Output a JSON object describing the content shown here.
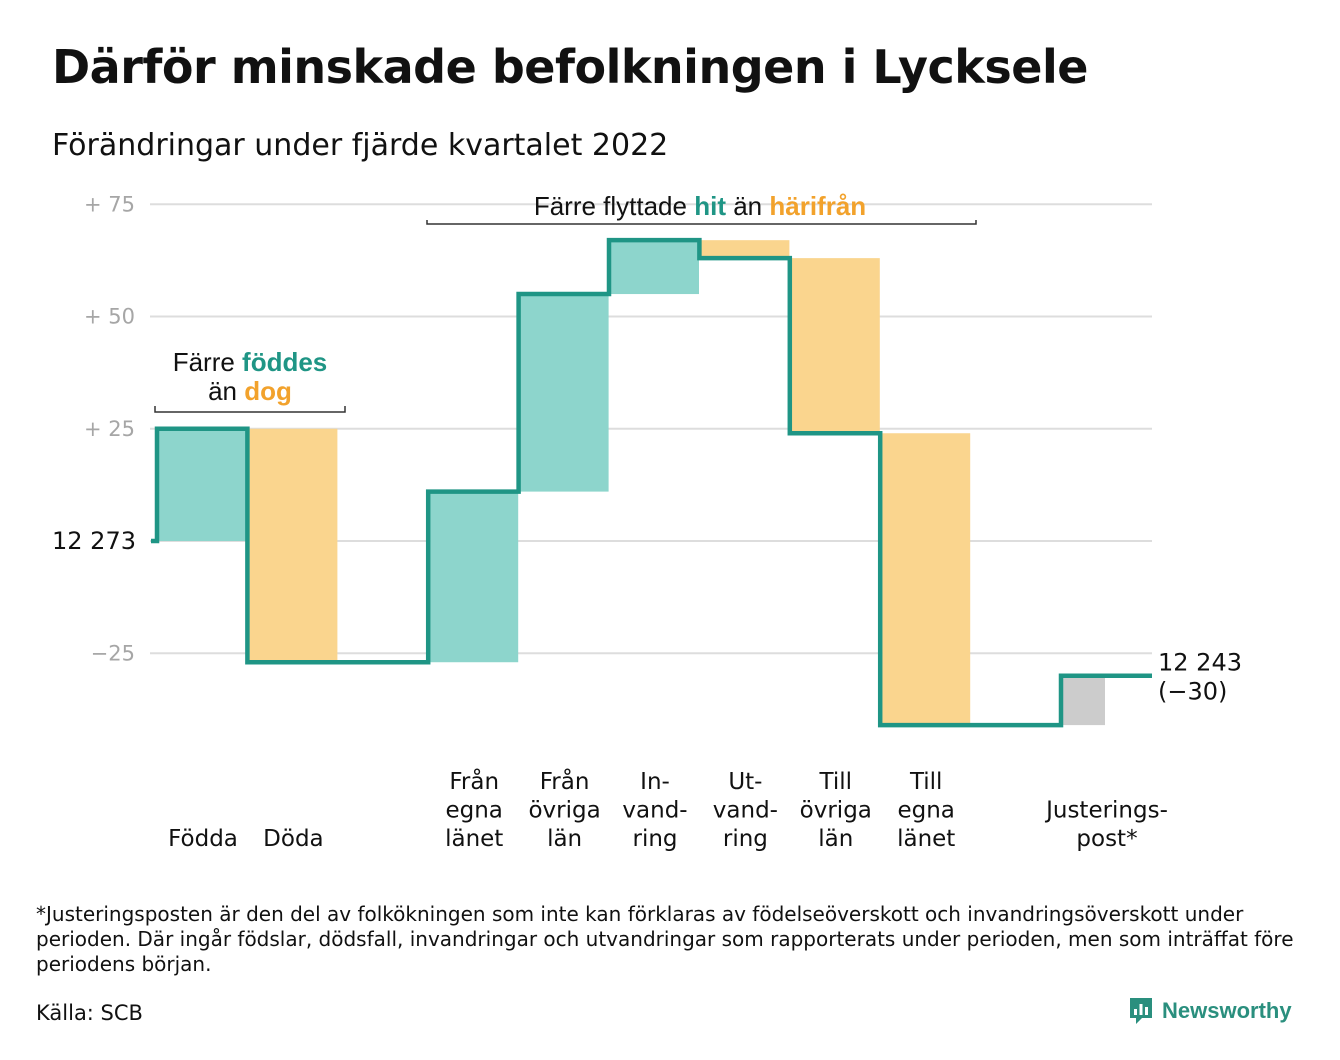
{
  "title": "Därför minskade befolkningen i Lycksele",
  "subtitle": "Förändringar under fjärde kvartalet 2022",
  "chart_data": {
    "type": "waterfall",
    "start_value": 12273,
    "start_label": "12 273",
    "end_value": 12243,
    "end_label": "12 243",
    "end_change_label": "(−30)",
    "y_ticks": [
      {
        "value": 75,
        "label": "+ 75"
      },
      {
        "value": 50,
        "label": "+ 50"
      },
      {
        "value": 25,
        "label": "+ 25"
      },
      {
        "value": 0,
        "label": ""
      },
      {
        "value": -25,
        "label": "−25"
      }
    ],
    "ylim": [
      -45,
      78
    ],
    "grid": true,
    "steps": [
      {
        "label_lines": [
          "Födda"
        ],
        "value": 25,
        "kind": "in"
      },
      {
        "label_lines": [
          "Döda"
        ],
        "value": -52,
        "kind": "out"
      },
      {
        "label_lines": [
          ""
        ],
        "value": 0,
        "kind": "none"
      },
      {
        "label_lines": [
          "Från",
          "egna",
          "länet"
        ],
        "value": 38,
        "kind": "in"
      },
      {
        "label_lines": [
          "Från",
          "övriga",
          "län"
        ],
        "value": 44,
        "kind": "in"
      },
      {
        "label_lines": [
          "In-",
          "vand-",
          "ring"
        ],
        "value": 12,
        "kind": "in"
      },
      {
        "label_lines": [
          "Ut-",
          "vand-",
          "ring"
        ],
        "value": -4,
        "kind": "out"
      },
      {
        "label_lines": [
          "Till",
          "övriga",
          "län"
        ],
        "value": -39,
        "kind": "out"
      },
      {
        "label_lines": [
          "Till",
          "egna",
          "länet"
        ],
        "value": -65,
        "kind": "out"
      },
      {
        "label_lines": [
          ""
        ],
        "value": 0,
        "kind": "none"
      },
      {
        "label_lines": [
          "Justerings-",
          "post*"
        ],
        "value": 11,
        "kind": "adj"
      }
    ],
    "annotations": {
      "births": {
        "line1_pre": "Färre ",
        "line1_hl": "föddes",
        "line2_pre": "än ",
        "line2_hl": "dog"
      },
      "moves": {
        "pre": "Färre flyttade ",
        "hl_in": "hit",
        "mid": " än ",
        "hl_out": "härifrån"
      }
    },
    "colors": {
      "in": "#8dd5cc",
      "out": "#fad58e",
      "adj": "#cccccc",
      "line": "#1f9585",
      "grid": "#dddddd"
    }
  },
  "footnote": "*Justeringsposten är den del av folkökningen som inte kan förklaras av födelseöverskott och invandringsöverskott under perioden. Där ingår födslar, dödsfall, invandringar och utvandringar som rapporterats under perioden, men som inträffat före periodens början.",
  "source": "Källa: SCB",
  "brand": {
    "name": "Newsworthy",
    "icon": "bar-chart-speech-icon",
    "color": "#2a8f7e"
  }
}
